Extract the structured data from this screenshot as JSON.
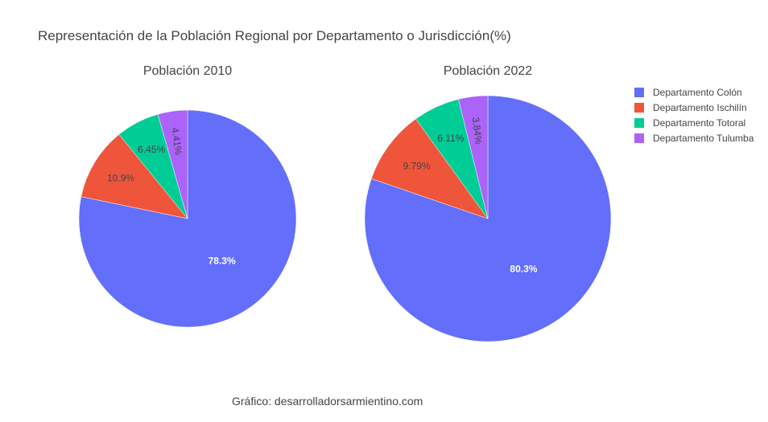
{
  "title": "Representación de la Población Regional por Departamento o Jurisdicción(%)",
  "footer": "Gráfico: desarrolladorsarmientino.com",
  "colors": {
    "Departamento Colón": "#636efa",
    "Departamento Ischilín": "#ef553b",
    "Departamento Totoral": "#00cc96",
    "Departamento Tulumba": "#ab63fa"
  },
  "legend": {
    "placement": "top-right",
    "items": [
      "Departamento Colón",
      "Departamento Ischilín",
      "Departamento Totoral",
      "Departamento Tulumba"
    ]
  },
  "chart_data": [
    {
      "type": "pie",
      "title": "Población 2010",
      "labels": [
        "Departamento Colón",
        "Departamento Ischilín",
        "Departamento Totoral",
        "Departamento Tulumba"
      ],
      "values": [
        78.3,
        10.9,
        6.45,
        4.41
      ],
      "value_labels": [
        "78.3%",
        "10.9%",
        "6.45%",
        "4.41%"
      ]
    },
    {
      "type": "pie",
      "title": "Población 2022",
      "labels": [
        "Departamento Colón",
        "Departamento Ischilín",
        "Departamento Totoral",
        "Departamento Tulumba"
      ],
      "values": [
        80.3,
        9.79,
        6.11,
        3.84
      ],
      "value_labels": [
        "80.3%",
        "9.79%",
        "6.11%",
        "3.84%"
      ]
    }
  ]
}
